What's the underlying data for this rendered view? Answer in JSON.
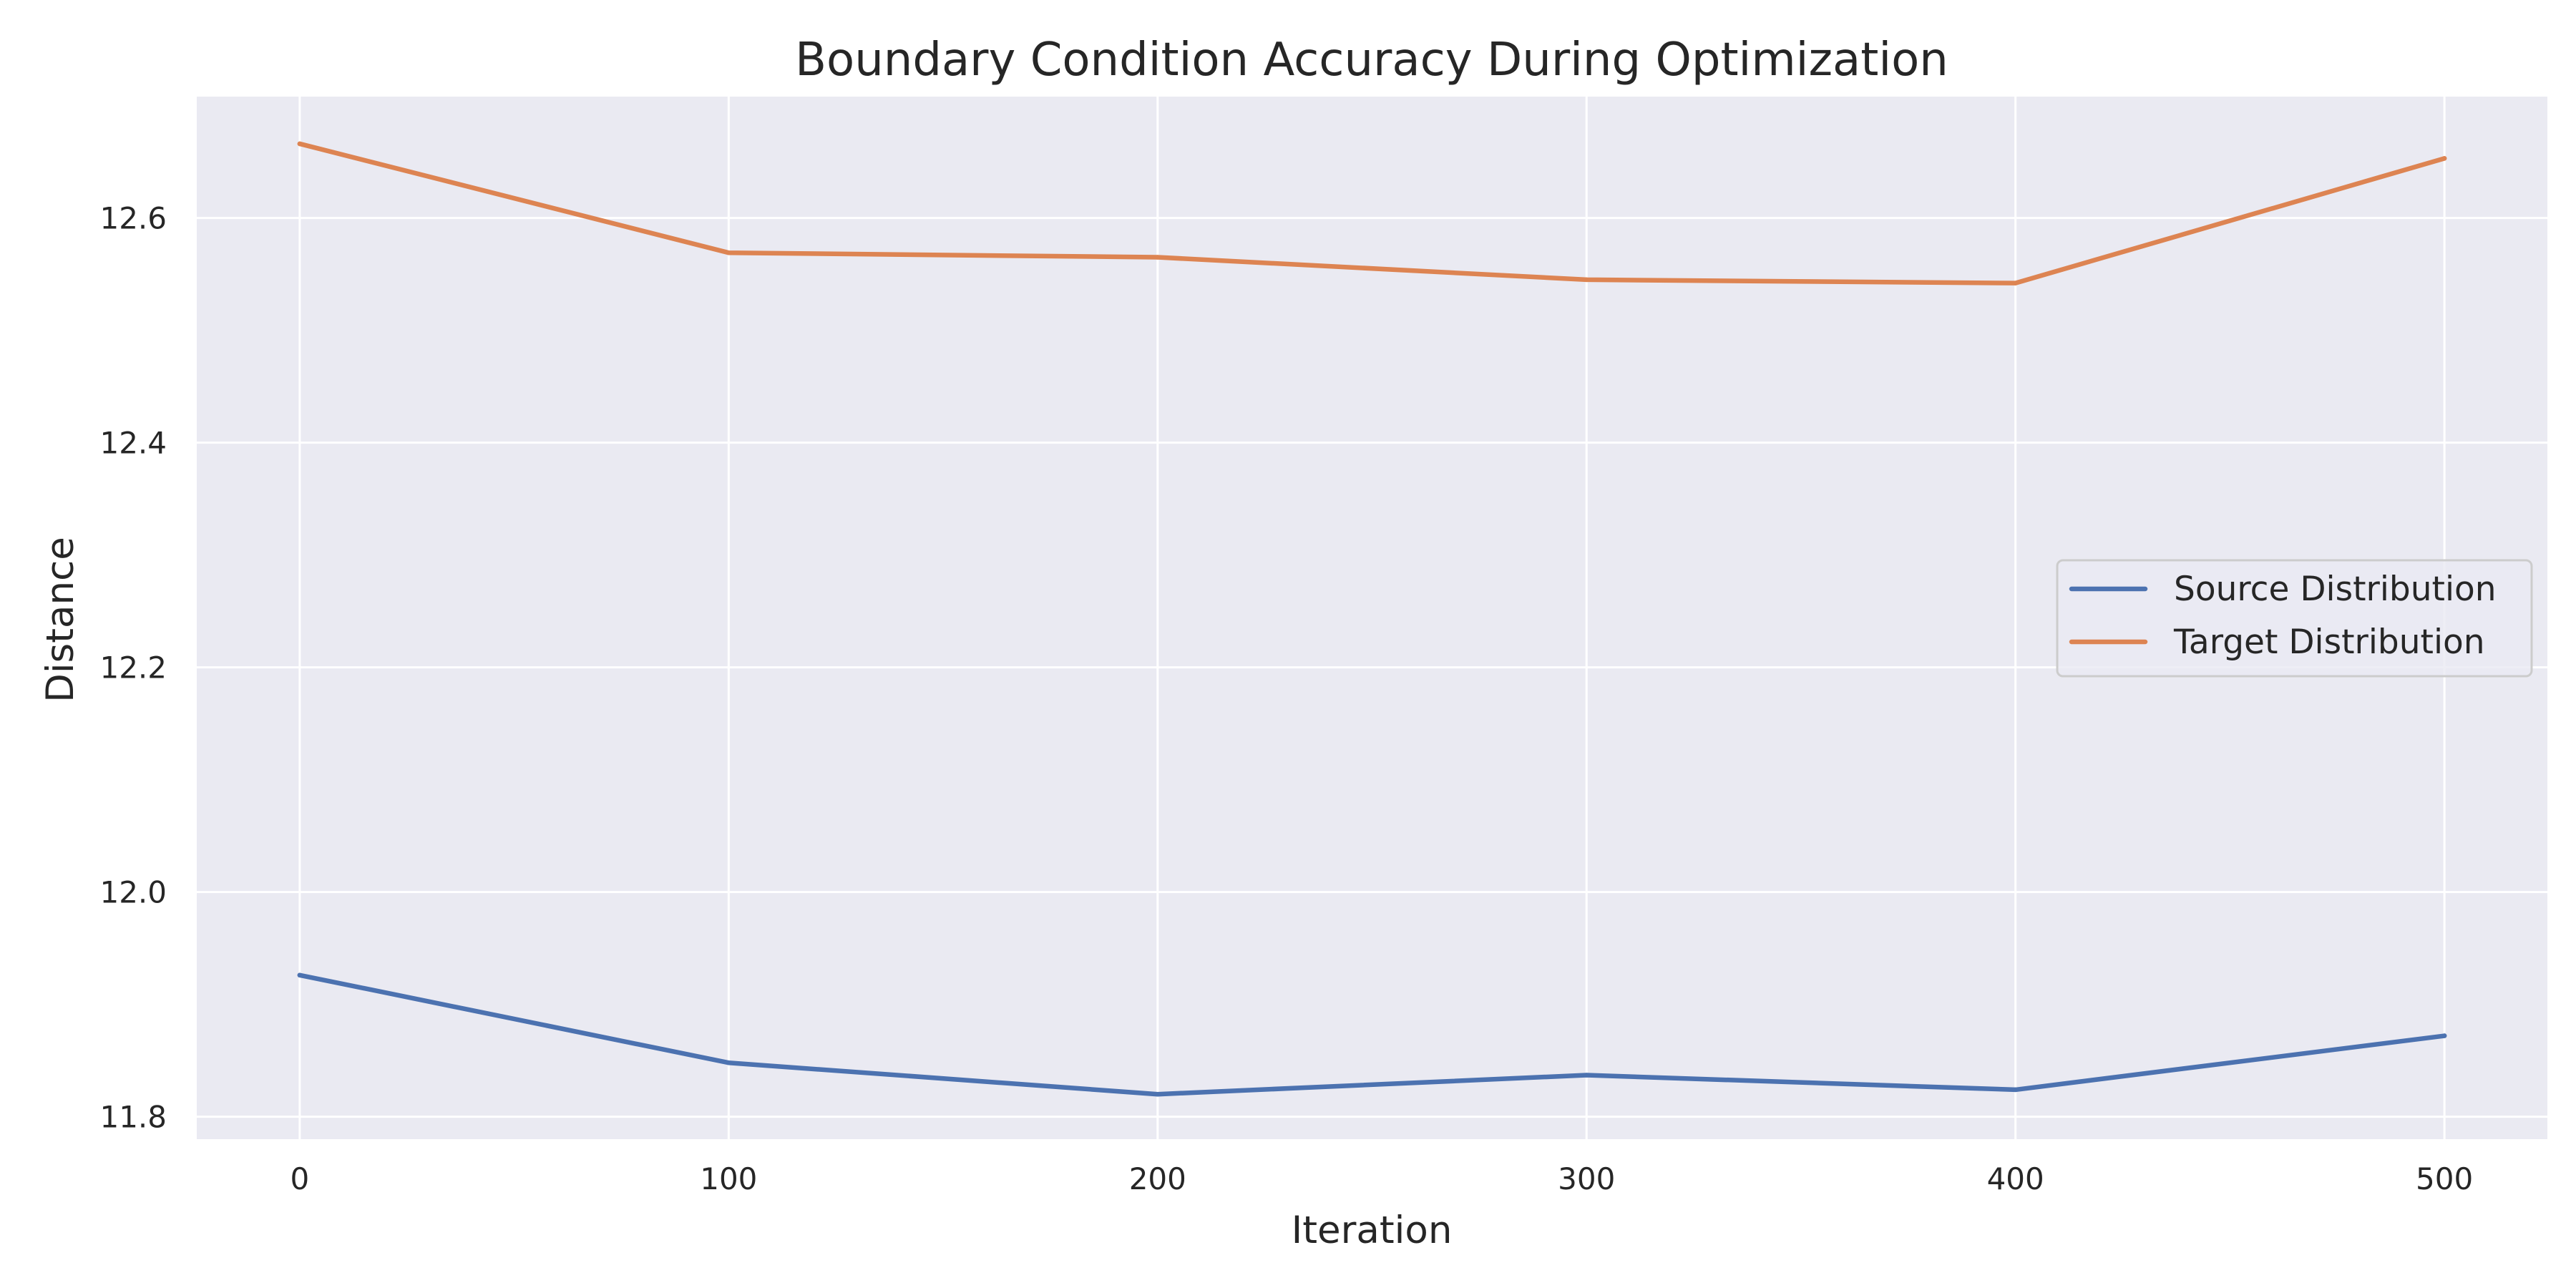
{
  "chart_data": {
    "type": "line",
    "title": "Boundary Condition Accuracy During Optimization",
    "xlabel": "Iteration",
    "ylabel": "Distance",
    "x": [
      0,
      100,
      200,
      300,
      400,
      500
    ],
    "xticks": [
      "0",
      "100",
      "200",
      "300",
      "400",
      "500"
    ],
    "yticks": [
      "11.8",
      "12.0",
      "12.2",
      "12.4",
      "12.6"
    ],
    "xlim": [
      -24,
      524
    ],
    "ylim": [
      11.78,
      12.708
    ],
    "grid": true,
    "legend_position": "center-right",
    "background_color": "#eaeaf2",
    "series": [
      {
        "name": "Source Distribution",
        "color": "#4c72b0",
        "values": [
          11.926,
          11.848,
          11.82,
          11.837,
          11.824,
          11.872
        ]
      },
      {
        "name": "Target Distribution",
        "color": "#dd8452",
        "values": [
          12.666,
          12.569,
          12.565,
          12.545,
          12.542,
          12.653
        ]
      }
    ]
  }
}
